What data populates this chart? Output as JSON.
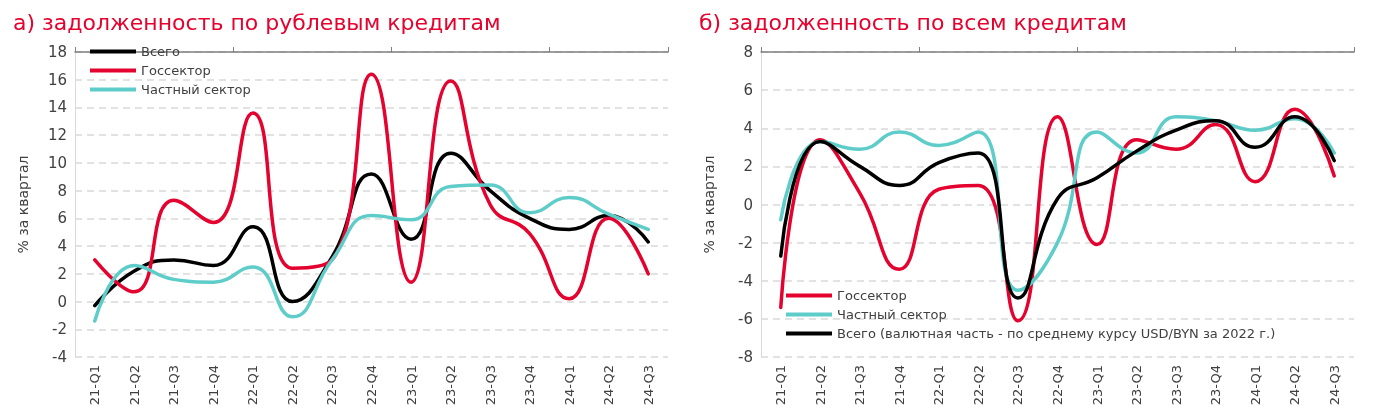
{
  "chart_data": [
    {
      "type": "line",
      "title": "а) задолженность по рублевым кредитам",
      "ylabel": "% за квартал",
      "categories": [
        "21-Q1",
        "21-Q2",
        "21-Q3",
        "21-Q4",
        "22-Q1",
        "22-Q2",
        "22-Q3",
        "22-Q4",
        "23-Q1",
        "23-Q2",
        "23-Q3",
        "23-Q4",
        "24-Q1",
        "24-Q2",
        "24-Q3"
      ],
      "series": [
        {
          "name": "Всего",
          "color": "#000000",
          "values": [
            -0.3,
            2.2,
            3.0,
            2.6,
            5.4,
            0.0,
            3.2,
            9.2,
            4.5,
            10.7,
            8.0,
            6.0,
            5.2,
            6.2,
            4.3
          ]
        },
        {
          "name": "Госсектор",
          "color": "#e4032e",
          "values": [
            3.0,
            0.7,
            7.3,
            5.7,
            13.6,
            2.4,
            3.0,
            16.4,
            1.4,
            15.9,
            7.0,
            4.9,
            0.2,
            6.0,
            2.0
          ]
        },
        {
          "name": "Частный сектор",
          "color": "#5ecdc9",
          "values": [
            -1.4,
            2.6,
            1.6,
            1.4,
            2.5,
            -1.1,
            3.0,
            6.2,
            5.9,
            8.3,
            8.4,
            6.4,
            7.5,
            6.3,
            5.2
          ]
        }
      ],
      "ylim": [
        -4,
        18
      ],
      "yticks": [
        -4,
        -2,
        0,
        2,
        4,
        6,
        8,
        10,
        12,
        14,
        16,
        18
      ],
      "grid": "y",
      "legend": "top left",
      "marker": "none",
      "line_style": "solid"
    },
    {
      "type": "line",
      "title": "б) задолженность по всем кредитам",
      "ylabel": "% за квартал",
      "categories": [
        "21-Q1",
        "21-Q2",
        "21-Q3",
        "21-Q4",
        "22-Q1",
        "22-Q2",
        "22-Q3",
        "22-Q4",
        "23-Q1",
        "23-Q2",
        "23-Q3",
        "23-Q4",
        "24-Q1",
        "24-Q2",
        "24-Q3"
      ],
      "series": [
        {
          "name": "Госсектор",
          "color": "#e4032e",
          "values": [
            -5.4,
            3.4,
            0.6,
            -3.4,
            0.8,
            1.0,
            -6.1,
            4.6,
            -2.1,
            3.4,
            2.9,
            4.2,
            1.2,
            5.0,
            1.5
          ]
        },
        {
          "name": "Частный сектор",
          "color": "#5ecdc9",
          "values": [
            -0.8,
            3.3,
            2.9,
            3.8,
            3.1,
            3.8,
            -4.5,
            -2.0,
            3.8,
            2.7,
            4.6,
            4.4,
            3.9,
            4.5,
            2.7
          ]
        },
        {
          "name": "Всего (валютная часть - по среднему курсу USD/BYN за 2022 г.)",
          "color": "#000000",
          "values": [
            -2.7,
            3.3,
            2.0,
            1.0,
            2.2,
            2.7,
            -4.9,
            0.3,
            1.4,
            2.8,
            3.9,
            4.4,
            3.0,
            4.6,
            2.3
          ]
        }
      ],
      "ylim": [
        -8,
        8
      ],
      "yticks": [
        -8,
        -6,
        -4,
        -2,
        0,
        2,
        4,
        6,
        8
      ],
      "grid": "y",
      "legend": "bottom left",
      "marker": "none",
      "line_style": "solid"
    }
  ]
}
